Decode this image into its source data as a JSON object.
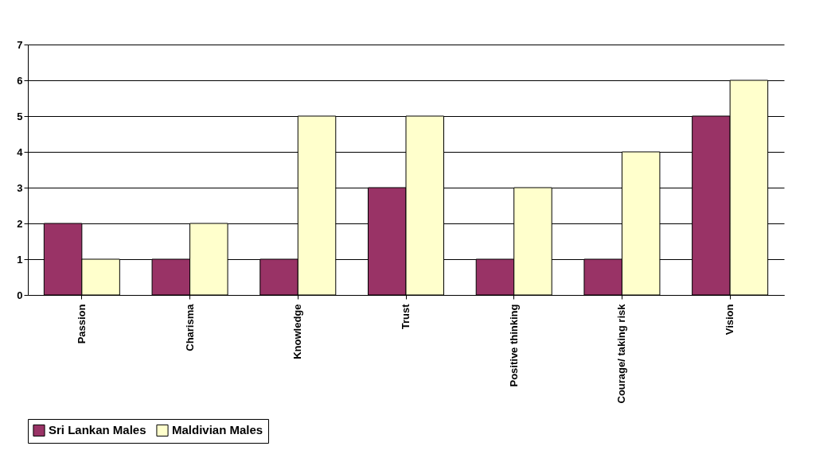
{
  "chart_data": {
    "type": "bar",
    "categories": [
      "Passion",
      "Charisma",
      "Knowledge",
      "Trust",
      "Positive thinking",
      "Courage/ taking risk",
      "Vision"
    ],
    "series": [
      {
        "name": "Sri Lankan Males",
        "color": "#993366",
        "values": [
          2,
          1,
          1,
          3,
          1,
          1,
          5
        ]
      },
      {
        "name": "Maldivian Males",
        "color": "#ffffcc",
        "values": [
          1,
          2,
          5,
          5,
          3,
          4,
          6
        ]
      }
    ],
    "ylim": [
      0,
      7
    ],
    "yticks": [
      0,
      1,
      2,
      3,
      4,
      5,
      6,
      7
    ],
    "grid": "y",
    "legend": "bottom"
  }
}
